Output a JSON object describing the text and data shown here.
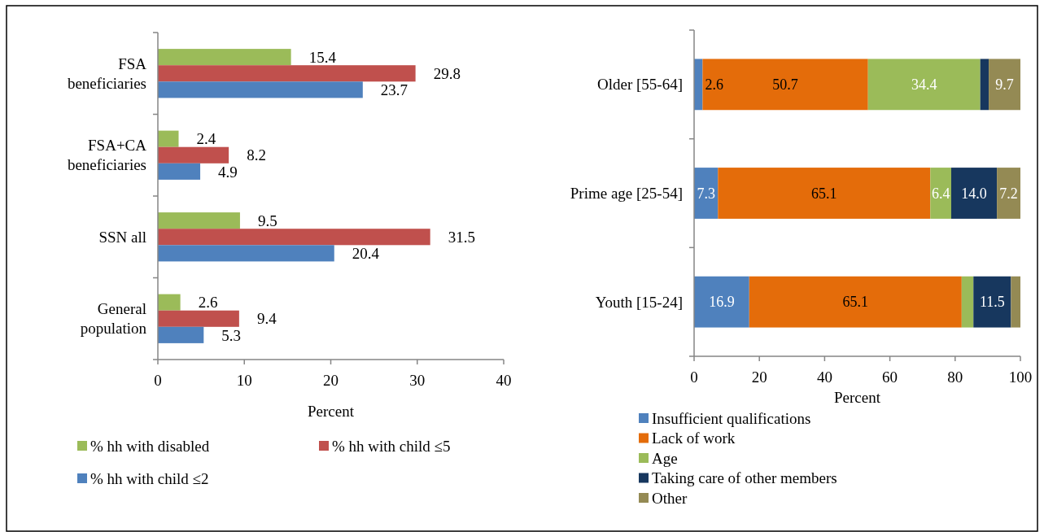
{
  "chart_data": [
    {
      "type": "bar",
      "orientation": "horizontal",
      "categories": [
        "FSA beneficiaries",
        "FSA+CA beneficiaries",
        "SSN all",
        "General population"
      ],
      "xlabel": "Percent",
      "xlim": [
        0,
        40
      ],
      "xticks": [
        0,
        10,
        20,
        30,
        40
      ],
      "grid": false,
      "legend": "bottom",
      "data_labels": true,
      "series": [
        {
          "name": "% hh with disabled",
          "color": "#9bbb59",
          "values": [
            15.4,
            2.4,
            9.5,
            2.6
          ]
        },
        {
          "name": "% hh with child ≤5",
          "color": "#c0504d",
          "values": [
            29.8,
            8.2,
            31.5,
            9.4
          ]
        },
        {
          "name": "% hh with child ≤2",
          "color": "#4f81bd",
          "values": [
            23.7,
            4.9,
            20.4,
            5.3
          ]
        }
      ]
    },
    {
      "type": "bar",
      "orientation": "horizontal",
      "stacked": true,
      "categories": [
        "Older [55-64]",
        "Prime age [25-54]",
        "Youth [15-24]"
      ],
      "xlabel": "Percent",
      "xlim": [
        0,
        100
      ],
      "xticks": [
        0,
        20,
        40,
        60,
        80,
        100
      ],
      "grid": false,
      "legend": "bottom",
      "series": [
        {
          "name": "Insufficient qualifications",
          "color": "#4f81bd",
          "values": [
            2.6,
            7.3,
            16.9
          ],
          "value_labels": [
            "2.6",
            "7.3",
            "16.9"
          ]
        },
        {
          "name": "Lack of work",
          "color": "#e46c0a",
          "values": [
            50.7,
            65.1,
            65.1
          ],
          "value_labels": [
            "50.7",
            "65.1",
            "65.1"
          ]
        },
        {
          "name": "Age",
          "color": "#9bbb59",
          "values": [
            34.4,
            6.4,
            3.6
          ],
          "value_labels": [
            "34.4",
            "6.4",
            null
          ]
        },
        {
          "name": "Taking care of other members",
          "color": "#17375e",
          "values": [
            2.6,
            14.0,
            11.5
          ],
          "value_labels": [
            null,
            "14.0",
            "11.5"
          ]
        },
        {
          "name": "Other",
          "color": "#948a54",
          "values": [
            9.7,
            7.2,
            2.9
          ],
          "value_labels": [
            "9.7",
            "7.2",
            null
          ]
        }
      ]
    }
  ]
}
